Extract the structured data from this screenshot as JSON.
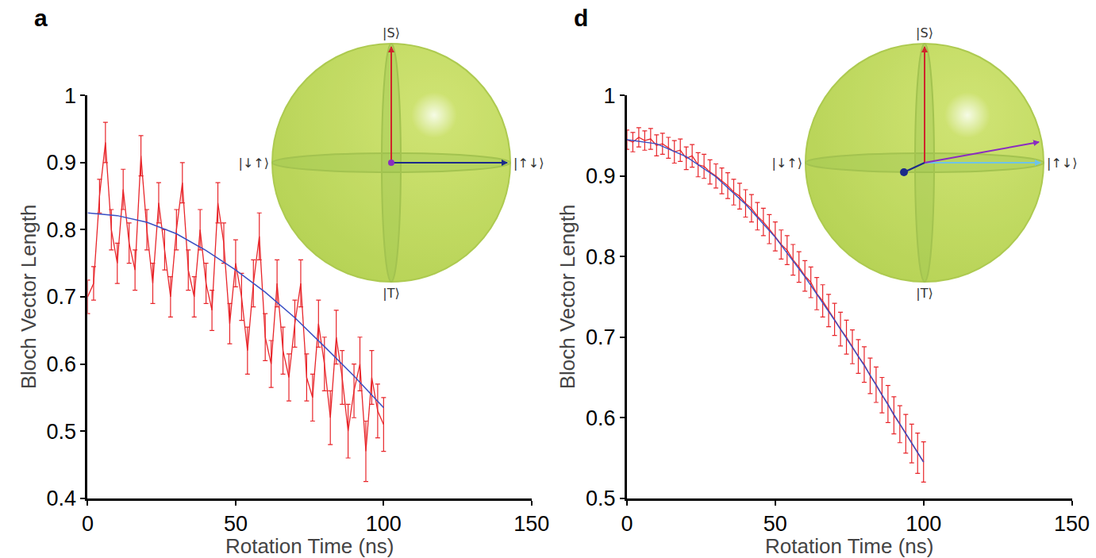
{
  "chart_data": [
    {
      "type": "line",
      "title": "a",
      "x_label": "Rotation Time (ns)",
      "y_label": "Bloch Vector Length",
      "xlim": [
        0,
        150
      ],
      "xticks": [
        0,
        50,
        100,
        150
      ],
      "ylim": [
        0.4,
        1
      ],
      "yticks": [
        0.4,
        0.5,
        0.6,
        0.7,
        0.8,
        0.9,
        1
      ],
      "grid": false,
      "annotations": [
        "|S⟩",
        "|T⟩",
        "|↓↑⟩",
        "|↑↓⟩"
      ],
      "series": [
        {
          "type": "errorbar",
          "color": "#e8262b",
          "x": [
            0,
            2,
            4,
            6,
            8,
            10,
            12,
            14,
            16,
            18,
            20,
            22,
            24,
            26,
            28,
            30,
            32,
            34,
            36,
            38,
            40,
            42,
            44,
            46,
            48,
            50,
            52,
            54,
            56,
            58,
            60,
            62,
            64,
            66,
            68,
            70,
            72,
            74,
            76,
            78,
            80,
            82,
            84,
            86,
            88,
            90,
            92,
            94,
            96,
            98,
            100
          ],
          "values": [
            0.7,
            0.72,
            0.85,
            0.93,
            0.8,
            0.75,
            0.86,
            0.78,
            0.74,
            0.91,
            0.8,
            0.72,
            0.84,
            0.77,
            0.7,
            0.8,
            0.87,
            0.74,
            0.7,
            0.8,
            0.72,
            0.68,
            0.84,
            0.78,
            0.66,
            0.75,
            0.7,
            0.62,
            0.72,
            0.79,
            0.64,
            0.6,
            0.72,
            0.62,
            0.58,
            0.66,
            0.72,
            0.58,
            0.55,
            0.66,
            0.6,
            0.52,
            0.64,
            0.58,
            0.5,
            0.56,
            0.6,
            0.47,
            0.58,
            0.53,
            0.51
          ],
          "errors": [
            0.025,
            0.025,
            0.025,
            0.03,
            0.03,
            0.03,
            0.03,
            0.03,
            0.03,
            0.03,
            0.03,
            0.03,
            0.03,
            0.03,
            0.03,
            0.03,
            0.03,
            0.03,
            0.03,
            0.03,
            0.03,
            0.03,
            0.03,
            0.03,
            0.03,
            0.035,
            0.035,
            0.035,
            0.035,
            0.035,
            0.035,
            0.035,
            0.035,
            0.035,
            0.035,
            0.035,
            0.035,
            0.035,
            0.035,
            0.035,
            0.04,
            0.04,
            0.04,
            0.04,
            0.04,
            0.04,
            0.04,
            0.045,
            0.04,
            0.04,
            0.04
          ]
        },
        {
          "type": "line",
          "color": "#3a4fc4",
          "x": [
            0,
            10,
            20,
            30,
            40,
            50,
            60,
            70,
            80,
            90,
            100
          ],
          "values": [
            0.825,
            0.821,
            0.811,
            0.794,
            0.769,
            0.74,
            0.707,
            0.669,
            0.626,
            0.582,
            0.535
          ]
        }
      ]
    },
    {
      "type": "line",
      "title": "d",
      "x_label": "Rotation Time (ns)",
      "y_label": "Bloch Vector Length",
      "xlim": [
        0,
        150
      ],
      "xticks": [
        0,
        50,
        100,
        150
      ],
      "ylim": [
        0.5,
        1
      ],
      "yticks": [
        0.5,
        0.6,
        0.7,
        0.8,
        0.9,
        1
      ],
      "grid": false,
      "annotations": [
        "|S⟩",
        "|T⟩",
        "|↓↑⟩",
        "|↑↓⟩"
      ],
      "series": [
        {
          "type": "errorbar",
          "color": "#e8262b",
          "x": [
            0,
            2,
            4,
            6,
            8,
            10,
            12,
            14,
            16,
            18,
            20,
            22,
            24,
            26,
            28,
            30,
            32,
            34,
            36,
            38,
            40,
            42,
            44,
            46,
            48,
            50,
            52,
            54,
            56,
            58,
            60,
            62,
            64,
            66,
            68,
            70,
            72,
            74,
            76,
            78,
            80,
            82,
            84,
            86,
            88,
            90,
            92,
            94,
            96,
            98,
            100
          ],
          "values": [
            0.945,
            0.942,
            0.948,
            0.944,
            0.946,
            0.938,
            0.94,
            0.935,
            0.93,
            0.932,
            0.922,
            0.925,
            0.914,
            0.912,
            0.905,
            0.9,
            0.894,
            0.888,
            0.88,
            0.875,
            0.866,
            0.86,
            0.85,
            0.843,
            0.834,
            0.825,
            0.815,
            0.808,
            0.796,
            0.787,
            0.776,
            0.768,
            0.754,
            0.745,
            0.733,
            0.722,
            0.71,
            0.7,
            0.688,
            0.676,
            0.666,
            0.652,
            0.641,
            0.628,
            0.617,
            0.603,
            0.592,
            0.58,
            0.568,
            0.556,
            0.545
          ],
          "errors": [
            0.012,
            0.012,
            0.012,
            0.012,
            0.013,
            0.013,
            0.013,
            0.013,
            0.014,
            0.014,
            0.014,
            0.014,
            0.015,
            0.015,
            0.015,
            0.015,
            0.016,
            0.016,
            0.016,
            0.016,
            0.017,
            0.017,
            0.017,
            0.017,
            0.018,
            0.018,
            0.018,
            0.018,
            0.019,
            0.019,
            0.019,
            0.019,
            0.02,
            0.02,
            0.02,
            0.02,
            0.021,
            0.021,
            0.021,
            0.021,
            0.022,
            0.022,
            0.022,
            0.022,
            0.023,
            0.023,
            0.023,
            0.024,
            0.024,
            0.025,
            0.025
          ]
        },
        {
          "type": "line",
          "color": "#3a4fc4",
          "x": [
            0,
            10,
            20,
            30,
            40,
            50,
            60,
            70,
            80,
            90,
            100
          ],
          "values": [
            0.945,
            0.94,
            0.924,
            0.899,
            0.865,
            0.824,
            0.775,
            0.721,
            0.665,
            0.604,
            0.545
          ]
        }
      ]
    }
  ]
}
